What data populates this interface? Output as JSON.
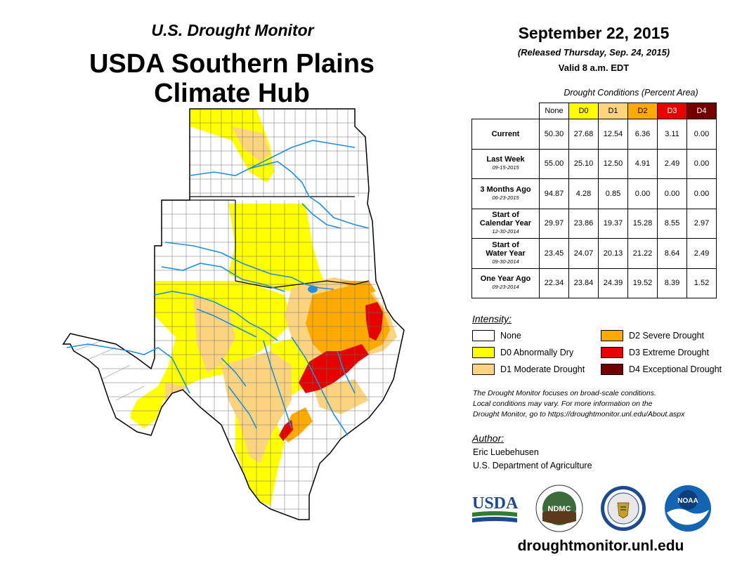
{
  "header": {
    "series_title": "U.S. Drought Monitor",
    "region_title_line1": "USDA Southern Plains",
    "region_title_line2": "Climate Hub"
  },
  "date_block": {
    "map_date": "September 22, 2015",
    "released": "(Released Thursday, Sep. 24, 2015)",
    "valid": "Valid 8 a.m. EDT"
  },
  "stats_table": {
    "caption": "Drought Conditions (Percent Area)",
    "columns": [
      {
        "label": "None",
        "color": "#ffffff",
        "text_color": "#000000"
      },
      {
        "label": "D0",
        "color": "#ffff00",
        "text_color": "#000000"
      },
      {
        "label": "D1",
        "color": "#fcd37f",
        "text_color": "#000000"
      },
      {
        "label": "D2",
        "color": "#ffaa00",
        "text_color": "#000000"
      },
      {
        "label": "D3",
        "color": "#e60000",
        "text_color": "#ffffff"
      },
      {
        "label": "D4",
        "color": "#730000",
        "text_color": "#ffffff"
      }
    ],
    "rows": [
      {
        "label_lines": [
          "Current"
        ],
        "date": "",
        "values": [
          "50.30",
          "27.68",
          "12.54",
          "6.36",
          "3.11",
          "0.00"
        ]
      },
      {
        "label_lines": [
          "Last Week"
        ],
        "date": "09-15-2015",
        "values": [
          "55.00",
          "25.10",
          "12.50",
          "4.91",
          "2.49",
          "0.00"
        ]
      },
      {
        "label_lines": [
          "3 Months Ago"
        ],
        "date": "06-23-2015",
        "values": [
          "94.87",
          "4.28",
          "0.85",
          "0.00",
          "0.00",
          "0.00"
        ]
      },
      {
        "label_lines": [
          "Start of",
          "Calendar Year"
        ],
        "date": "12-30-2014",
        "values": [
          "29.97",
          "23.86",
          "19.37",
          "15.28",
          "8.55",
          "2.97"
        ]
      },
      {
        "label_lines": [
          "Start of",
          "Water Year"
        ],
        "date": "09-30-2014",
        "values": [
          "23.45",
          "24.07",
          "20.13",
          "21.22",
          "8.64",
          "2.49"
        ]
      },
      {
        "label_lines": [
          "One Year Ago"
        ],
        "date": "09-23-2014",
        "values": [
          "22.34",
          "23.84",
          "24.39",
          "19.52",
          "8.39",
          "1.52"
        ]
      }
    ]
  },
  "legend": {
    "title": "Intensity:",
    "items": [
      {
        "label": "None",
        "color": "#ffffff"
      },
      {
        "label": "D0 Abnormally Dry",
        "color": "#ffff00"
      },
      {
        "label": "D1 Moderate Drought",
        "color": "#fcd37f"
      },
      {
        "label": "D2 Severe Drought",
        "color": "#ffaa00"
      },
      {
        "label": "D3 Extreme Drought",
        "color": "#e60000"
      },
      {
        "label": "D4 Exceptional Drought",
        "color": "#730000"
      }
    ]
  },
  "note": {
    "line1": "The Drought Monitor focuses on broad-scale conditions.",
    "line2": "Local conditions may vary. For more information on the",
    "line3": "Drought Monitor, go to https://droughtmonitor.unl.edu/About.aspx"
  },
  "author": {
    "title": "Author:",
    "name": "Eric Luebehusen",
    "organization": "U.S. Department of Agriculture"
  },
  "logos": {
    "usda": "USDA",
    "ndmc": "NDMC",
    "noaa": "NOAA"
  },
  "footer": {
    "website": "droughtmonitor.unl.edu"
  },
  "colors": {
    "none": "#ffffff",
    "d0": "#ffff00",
    "d1": "#fcd37f",
    "d2": "#ffaa00",
    "d3": "#e60000",
    "d4": "#730000",
    "river": "#1e8fe0",
    "county_line": "#6e6e6e"
  }
}
